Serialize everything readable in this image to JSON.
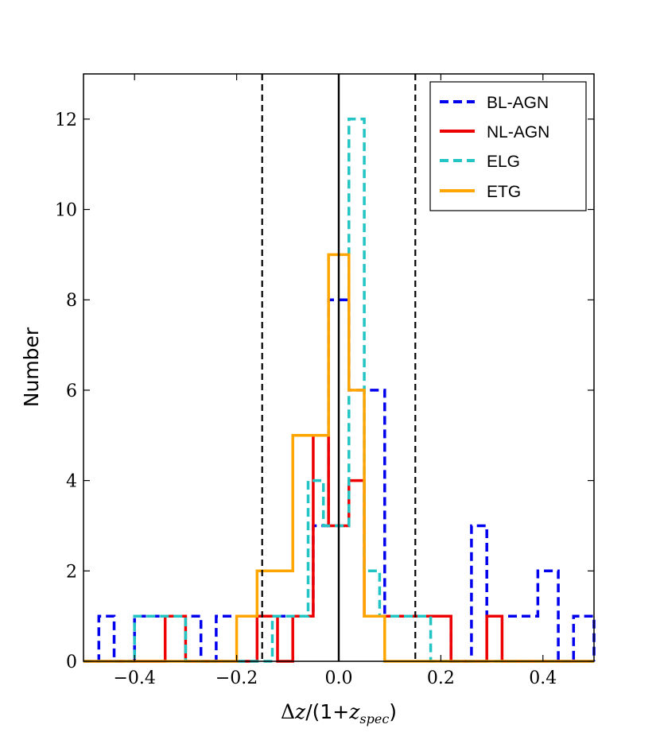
{
  "chart_data": {
    "type": "histogram",
    "xlabel": {
      "delta": "Δ",
      "z": "z",
      "mid": "/(1+",
      "zs": "z",
      "sub": "spec",
      "close": ")"
    },
    "ylabel": "Number",
    "xlim": [
      -0.5,
      0.5
    ],
    "ylim": [
      0,
      13
    ],
    "xticks": [
      -0.4,
      -0.2,
      0.0,
      0.2,
      0.4
    ],
    "xtick_labels": [
      "−0.4",
      "−0.2",
      "0.0",
      "0.2",
      "0.4"
    ],
    "yticks": [
      0,
      2,
      4,
      6,
      8,
      10,
      12
    ],
    "ytick_labels": [
      "0",
      "2",
      "4",
      "6",
      "8",
      "10",
      "12"
    ],
    "vlines": [
      {
        "x": 0.0,
        "style": "solid"
      },
      {
        "x": -0.15,
        "style": "dashed"
      },
      {
        "x": 0.15,
        "style": "dashed"
      }
    ],
    "legend_position": "top-right",
    "series": [
      {
        "name": "BL-AGN",
        "color": "#0000ee",
        "style": "dashed",
        "edges": [
          -0.5,
          -0.47,
          -0.44,
          -0.4,
          -0.37,
          -0.34,
          -0.3,
          -0.27,
          -0.24,
          -0.21,
          -0.18,
          -0.15,
          -0.12,
          -0.09,
          -0.05,
          -0.02,
          0.02,
          0.05,
          0.09,
          0.12,
          0.15,
          0.19,
          0.22,
          0.26,
          0.29,
          0.32,
          0.36,
          0.39,
          0.43,
          0.46,
          0.5
        ],
        "counts": [
          0,
          1,
          0,
          1,
          1,
          1,
          1,
          0,
          1,
          1,
          1,
          1,
          1,
          1,
          3,
          8,
          6,
          6,
          1,
          1,
          1,
          1,
          0,
          3,
          1,
          1,
          1,
          2,
          0,
          1
        ]
      },
      {
        "name": "NL-AGN",
        "color": "#ee0000",
        "style": "solid",
        "edges": [
          -0.5,
          -0.34,
          -0.3,
          -0.16,
          -0.12,
          -0.09,
          -0.05,
          -0.02,
          0.02,
          0.05,
          0.09,
          0.19,
          0.22,
          0.29,
          0.32,
          0.5
        ],
        "counts": [
          0,
          1,
          0,
          1,
          0,
          1,
          5,
          3,
          4,
          1,
          1,
          1,
          0,
          1,
          0
        ]
      },
      {
        "name": "ELG",
        "color": "#22c4c4",
        "style": "dashed",
        "edges": [
          -0.5,
          -0.4,
          -0.36,
          -0.33,
          -0.3,
          -0.13,
          -0.1,
          -0.06,
          -0.03,
          0.0,
          0.02,
          0.05,
          0.08,
          0.11,
          0.15,
          0.18,
          0.5
        ],
        "counts": [
          0,
          1,
          1,
          1,
          0,
          1,
          1,
          4,
          3,
          3,
          12,
          2,
          1,
          1,
          1,
          0
        ]
      },
      {
        "name": "ETG",
        "color": "#ffa500",
        "style": "solid",
        "edges": [
          -0.5,
          -0.2,
          -0.16,
          -0.09,
          -0.02,
          0.02,
          0.05,
          0.09,
          0.5
        ],
        "counts": [
          0,
          1,
          2,
          5,
          9,
          6,
          1,
          0
        ]
      }
    ]
  }
}
